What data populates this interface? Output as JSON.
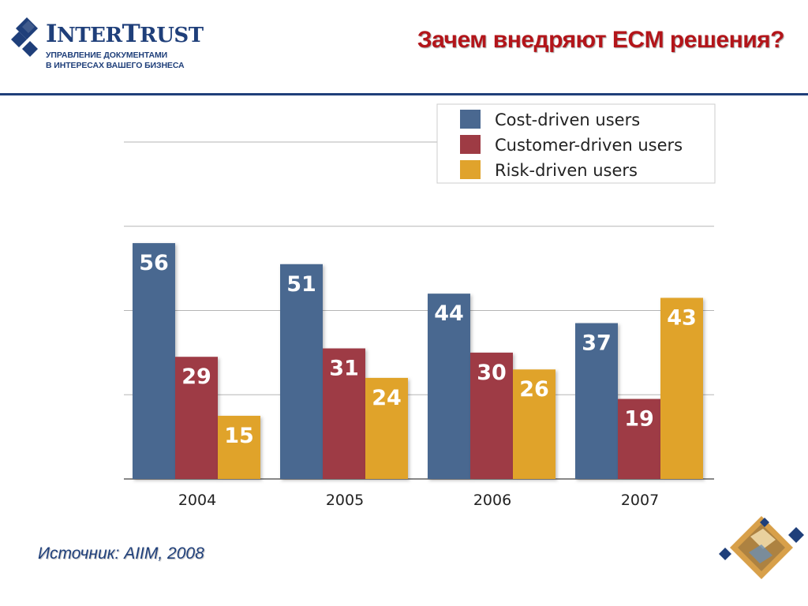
{
  "header": {
    "logo_name_first_cap": "I",
    "logo_name_first_rest": "NTER",
    "logo_name_second_cap": "T",
    "logo_name_second_rest": "RUST",
    "logo_tagline_1": "УПРАВЛЕНИЕ ДОКУМЕНТАМИ",
    "logo_tagline_2": "В ИНТЕРЕСАХ ВАШЕГО БИЗНЕСА",
    "title": "Зачем внедряют ECM решения?"
  },
  "footer": {
    "source": "Источник: AIIM, 2008"
  },
  "colors": {
    "brand_blue": "#1f3f7a",
    "title_red": "#b3151a",
    "cost": "#4a6890",
    "customer": "#9e3b44",
    "risk": "#e0a32c"
  },
  "icons": [
    "intertrust-diamond-logo-icon",
    "decorative-diamond-collage-icon"
  ],
  "chart_data": {
    "type": "bar",
    "categories": [
      "2004",
      "2005",
      "2006",
      "2007"
    ],
    "series": [
      {
        "name": "Cost-driven users",
        "values": [
          56,
          51,
          44,
          37
        ]
      },
      {
        "name": "Customer-driven users",
        "values": [
          29,
          31,
          30,
          19
        ]
      },
      {
        "name": "Risk-driven users",
        "values": [
          15,
          24,
          26,
          43
        ]
      }
    ],
    "title": "",
    "xlabel": "",
    "ylabel": "",
    "ylim": [
      0,
      80
    ],
    "grid": true,
    "legend": "top-right",
    "data_labels": true
  }
}
